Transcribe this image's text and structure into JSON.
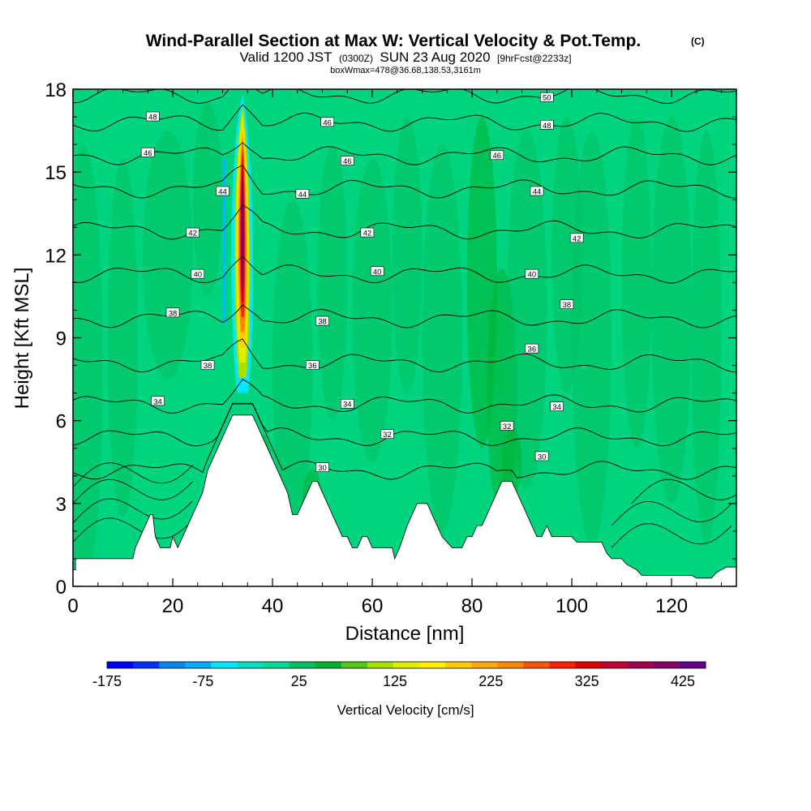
{
  "header": {
    "title": "Wind-Parallel Section at Max W: Vertical Velocity & Pot.Temp.",
    "copyright": "(C)",
    "valid_prefix": "Valid 1200 JST",
    "valid_utc": "(0300Z)",
    "valid_date": "SUN 23 Aug 2020",
    "forecast": "[9hrFcst@2233z]",
    "box_info": "boxWmax=478@36.68,138.53,3161m"
  },
  "chart_data": {
    "type": "heatmap",
    "xlabel": "Distance [nm]",
    "ylabel": "Height [Kft MSL]",
    "xlim": [
      0,
      133
    ],
    "ylim": [
      0,
      18
    ],
    "x_ticks": [
      0,
      20,
      40,
      60,
      80,
      100,
      120
    ],
    "y_ticks": [
      0,
      3,
      6,
      9,
      12,
      15,
      18
    ],
    "colorbar": {
      "label": "Vertical Velocity [cm/s]",
      "tick_labels": [
        "-175",
        "-75",
        "25",
        "125",
        "225",
        "325",
        "425"
      ],
      "min": -200,
      "max": 450,
      "colors": [
        "#0000ff",
        "#0033ff",
        "#0088ee",
        "#00aaff",
        "#00e8ff",
        "#00e0c0",
        "#00d898",
        "#00c060",
        "#00b030",
        "#55c818",
        "#a8e000",
        "#e0ee00",
        "#ffee00",
        "#ffcc00",
        "#ffaa00",
        "#ff8800",
        "#ff5500",
        "#ff2200",
        "#dd0000",
        "#c00033",
        "#a00050",
        "#880066",
        "#660088"
      ]
    },
    "max_w_updraft": {
      "x_nm": 34,
      "core_top_kft": 17.5,
      "core_bottom_kft": 7
    },
    "terrain_kft": [
      [
        0,
        0.6
      ],
      [
        0.5,
        0.6
      ],
      [
        0.5,
        1.0
      ],
      [
        12,
        1.0
      ],
      [
        12.5,
        1.4
      ],
      [
        13.5,
        1.8
      ],
      [
        14.5,
        2.2
      ],
      [
        15.5,
        2.6
      ],
      [
        16,
        2.6
      ],
      [
        16.5,
        1.8
      ],
      [
        17.5,
        1.4
      ],
      [
        19.5,
        1.4
      ],
      [
        20,
        1.8
      ],
      [
        21,
        1.4
      ],
      [
        22,
        1.8
      ],
      [
        23,
        2.2
      ],
      [
        24,
        2.6
      ],
      [
        25,
        3.0
      ],
      [
        26,
        3.4
      ],
      [
        27,
        4.2
      ],
      [
        28,
        4.6
      ],
      [
        29,
        5.0
      ],
      [
        30,
        5.4
      ],
      [
        31,
        5.8
      ],
      [
        32,
        6.2
      ],
      [
        36,
        6.2
      ],
      [
        37,
        5.8
      ],
      [
        38,
        5.4
      ],
      [
        39,
        5.0
      ],
      [
        40,
        4.6
      ],
      [
        41,
        4.2
      ],
      [
        42,
        3.8
      ],
      [
        43,
        3.4
      ],
      [
        44,
        2.6
      ],
      [
        45,
        2.6
      ],
      [
        46,
        3.0
      ],
      [
        47,
        3.4
      ],
      [
        48,
        3.8
      ],
      [
        49,
        3.8
      ],
      [
        50,
        3.4
      ],
      [
        51,
        3.0
      ],
      [
        52,
        2.6
      ],
      [
        53,
        2.2
      ],
      [
        54,
        1.8
      ],
      [
        55,
        1.8
      ],
      [
        56,
        1.4
      ],
      [
        57,
        1.4
      ],
      [
        58,
        1.8
      ],
      [
        59,
        1.8
      ],
      [
        60,
        1.4
      ],
      [
        64,
        1.4
      ],
      [
        64.5,
        1.0
      ],
      [
        65.5,
        1.4
      ],
      [
        67,
        2.2
      ],
      [
        68,
        2.6
      ],
      [
        69,
        3.0
      ],
      [
        71,
        3.0
      ],
      [
        72,
        2.6
      ],
      [
        73,
        2.2
      ],
      [
        74,
        1.8
      ],
      [
        76,
        1.4
      ],
      [
        78,
        1.4
      ],
      [
        79,
        1.8
      ],
      [
        80,
        1.8
      ],
      [
        81,
        2.2
      ],
      [
        82,
        2.2
      ],
      [
        83,
        2.6
      ],
      [
        84,
        3.0
      ],
      [
        85,
        3.4
      ],
      [
        86,
        3.8
      ],
      [
        88,
        3.8
      ],
      [
        89,
        3.4
      ],
      [
        90,
        3.0
      ],
      [
        91,
        2.6
      ],
      [
        92,
        2.2
      ],
      [
        93,
        1.8
      ],
      [
        94,
        1.8
      ],
      [
        95,
        2.2
      ],
      [
        96,
        1.8
      ],
      [
        100,
        1.8
      ],
      [
        101,
        1.6
      ],
      [
        106,
        1.6
      ],
      [
        107,
        1.2
      ],
      [
        108,
        1.0
      ],
      [
        110,
        1.0
      ],
      [
        111,
        0.8
      ],
      [
        113,
        0.6
      ],
      [
        114,
        0.4
      ],
      [
        124,
        0.4
      ],
      [
        125,
        0.3
      ],
      [
        128,
        0.3
      ],
      [
        129,
        0.5
      ],
      [
        131,
        0.7
      ],
      [
        133,
        0.7
      ]
    ],
    "theta_contours": [
      {
        "label": "30",
        "base_kft": 4.2
      },
      {
        "label": "32",
        "base_kft": 5.4
      },
      {
        "label": "34",
        "base_kft": 6.6
      },
      {
        "label": "36",
        "base_kft": 8.1
      },
      {
        "label": "38",
        "base_kft": 9.7
      },
      {
        "label": "40",
        "base_kft": 11.3
      },
      {
        "label": "42",
        "base_kft": 12.9
      },
      {
        "label": "44",
        "base_kft": 14.4
      },
      {
        "label": "46",
        "base_kft": 15.6
      },
      {
        "label": "48",
        "base_kft": 16.8
      },
      {
        "label": "50",
        "base_kft": 17.8
      }
    ],
    "contour_labels": [
      {
        "text": "48",
        "x": 16,
        "y": 17.0
      },
      {
        "text": "46",
        "x": 15,
        "y": 15.7
      },
      {
        "text": "46",
        "x": 51,
        "y": 16.8
      },
      {
        "text": "46",
        "x": 55,
        "y": 15.4
      },
      {
        "text": "46",
        "x": 85,
        "y": 15.6
      },
      {
        "text": "48",
        "x": 95,
        "y": 16.7
      },
      {
        "text": "50",
        "x": 95,
        "y": 17.7
      },
      {
        "text": "44",
        "x": 30,
        "y": 14.3
      },
      {
        "text": "44",
        "x": 46,
        "y": 14.2
      },
      {
        "text": "44",
        "x": 93,
        "y": 14.3
      },
      {
        "text": "42",
        "x": 24,
        "y": 12.8
      },
      {
        "text": "42",
        "x": 59,
        "y": 12.8
      },
      {
        "text": "42",
        "x": 101,
        "y": 12.6
      },
      {
        "text": "40",
        "x": 25,
        "y": 11.3
      },
      {
        "text": "40",
        "x": 61,
        "y": 11.4
      },
      {
        "text": "40",
        "x": 92,
        "y": 11.3
      },
      {
        "text": "38",
        "x": 20,
        "y": 9.9
      },
      {
        "text": "38",
        "x": 50,
        "y": 9.6
      },
      {
        "text": "38",
        "x": 99,
        "y": 10.2
      },
      {
        "text": "38",
        "x": 27,
        "y": 8.0
      },
      {
        "text": "36",
        "x": 48,
        "y": 8.0
      },
      {
        "text": "36",
        "x": 92,
        "y": 8.6
      },
      {
        "text": "34",
        "x": 17,
        "y": 6.7
      },
      {
        "text": "34",
        "x": 55,
        "y": 6.6
      },
      {
        "text": "34",
        "x": 97,
        "y": 6.5
      },
      {
        "text": "32",
        "x": 63,
        "y": 5.5
      },
      {
        "text": "32",
        "x": 87,
        "y": 5.8
      },
      {
        "text": "30",
        "x": 50,
        "y": 4.3
      },
      {
        "text": "30",
        "x": 94,
        "y": 4.7
      }
    ]
  }
}
